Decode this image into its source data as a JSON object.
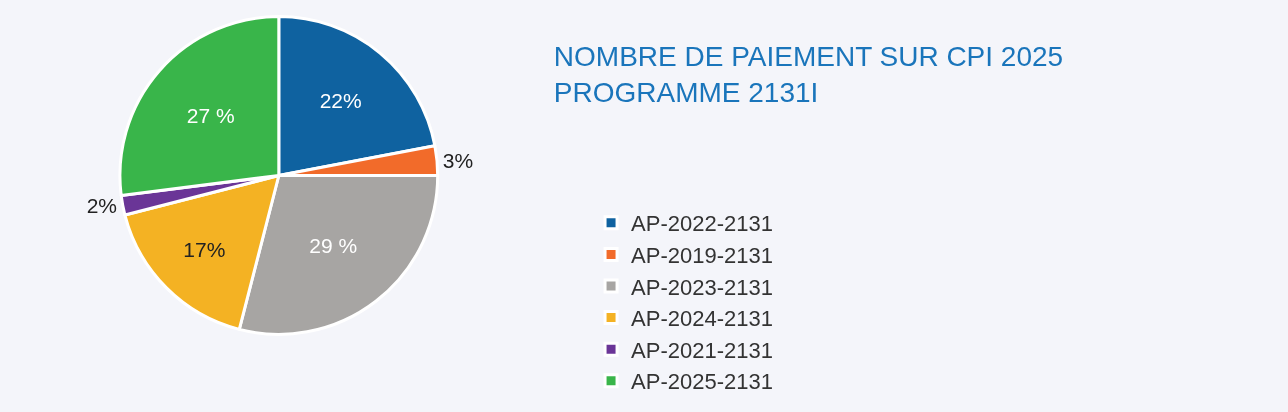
{
  "chart_data": {
    "type": "pie",
    "title": "NOMBRE DE PAIEMENT SUR CPI 2025\nPROGRAMME 2131I",
    "categories": [
      "AP-2022-2131",
      "AP-2019-2131",
      "AP-2023-2131",
      "AP-2024-2131",
      "AP-2021-2131",
      "AP-2025-2131"
    ],
    "values": [
      22,
      3,
      29,
      17,
      2,
      27
    ],
    "value_labels": [
      "22%",
      "3%",
      "29 %",
      "17%",
      "2%",
      "27 %"
    ],
    "colors": [
      "#0f62a0",
      "#f26b2a",
      "#a7a5a3",
      "#f4b223",
      "#6a3597",
      "#39b54a"
    ],
    "legend": "right"
  }
}
